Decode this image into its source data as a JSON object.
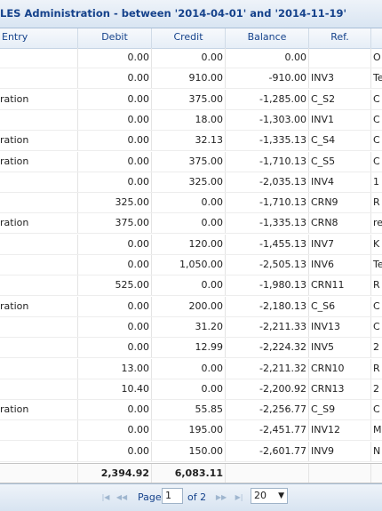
{
  "title": "LES Administration - between '2014-04-01' and '2014-11-19'",
  "columns": {
    "entry": "Entry",
    "debit": "Debit",
    "credit": "Credit",
    "balance": "Balance",
    "ref": "Ref."
  },
  "rows": [
    {
      "entry": "",
      "debit": "0.00",
      "credit": "0.00",
      "balance": "0.00",
      "ref": "",
      "extra": "O"
    },
    {
      "entry": "",
      "debit": "0.00",
      "credit": "910.00",
      "balance": "-910.00",
      "ref": "INV3",
      "extra": "Te"
    },
    {
      "entry": "ration",
      "debit": "0.00",
      "credit": "375.00",
      "balance": "-1,285.00",
      "ref": "C_S2",
      "extra": "C"
    },
    {
      "entry": "",
      "debit": "0.00",
      "credit": "18.00",
      "balance": "-1,303.00",
      "ref": "INV1",
      "extra": "C"
    },
    {
      "entry": "ration",
      "debit": "0.00",
      "credit": "32.13",
      "balance": "-1,335.13",
      "ref": "C_S4",
      "extra": "C"
    },
    {
      "entry": "ration",
      "debit": "0.00",
      "credit": "375.00",
      "balance": "-1,710.13",
      "ref": "C_S5",
      "extra": "C"
    },
    {
      "entry": "",
      "debit": "0.00",
      "credit": "325.00",
      "balance": "-2,035.13",
      "ref": "INV4",
      "extra": "1"
    },
    {
      "entry": "",
      "debit": "325.00",
      "credit": "0.00",
      "balance": "-1,710.13",
      "ref": "CRN9",
      "extra": "R"
    },
    {
      "entry": "ration",
      "debit": "375.00",
      "credit": "0.00",
      "balance": "-1,335.13",
      "ref": "CRN8",
      "extra": "re"
    },
    {
      "entry": "",
      "debit": "0.00",
      "credit": "120.00",
      "balance": "-1,455.13",
      "ref": "INV7",
      "extra": "K"
    },
    {
      "entry": "",
      "debit": "0.00",
      "credit": "1,050.00",
      "balance": "-2,505.13",
      "ref": "INV6",
      "extra": "Te"
    },
    {
      "entry": "",
      "debit": "525.00",
      "credit": "0.00",
      "balance": "-1,980.13",
      "ref": "CRN11",
      "extra": "R"
    },
    {
      "entry": "ration",
      "debit": "0.00",
      "credit": "200.00",
      "balance": "-2,180.13",
      "ref": "C_S6",
      "extra": "C"
    },
    {
      "entry": "",
      "debit": "0.00",
      "credit": "31.20",
      "balance": "-2,211.33",
      "ref": "INV13",
      "extra": "C"
    },
    {
      "entry": "",
      "debit": "0.00",
      "credit": "12.99",
      "balance": "-2,224.32",
      "ref": "INV5",
      "extra": "2"
    },
    {
      "entry": "",
      "debit": "13.00",
      "credit": "0.00",
      "balance": "-2,211.32",
      "ref": "CRN10",
      "extra": "R"
    },
    {
      "entry": "",
      "debit": "10.40",
      "credit": "0.00",
      "balance": "-2,200.92",
      "ref": "CRN13",
      "extra": "2"
    },
    {
      "entry": "ration",
      "debit": "0.00",
      "credit": "55.85",
      "balance": "-2,256.77",
      "ref": "C_S9",
      "extra": "C"
    },
    {
      "entry": "",
      "debit": "0.00",
      "credit": "195.00",
      "balance": "-2,451.77",
      "ref": "INV12",
      "extra": "M"
    },
    {
      "entry": "",
      "debit": "0.00",
      "credit": "150.00",
      "balance": "-2,601.77",
      "ref": "INV9",
      "extra": "N"
    }
  ],
  "totals": {
    "debit": "2,394.92",
    "credit": "6,083.11"
  },
  "paging": {
    "page_label": "Page",
    "page_value": "1",
    "of_label": "of 2",
    "page_size": "20",
    "icons": {
      "first": "first-page-icon",
      "prev": "prev-page-icon",
      "next": "next-page-icon",
      "last": "last-page-icon"
    }
  },
  "colors": {
    "header_text": "#15428b",
    "toolbar_bg": "#d9e5f2"
  }
}
